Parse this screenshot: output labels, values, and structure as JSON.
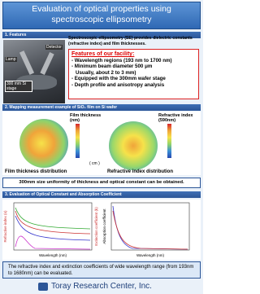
{
  "header": {
    "title": "Evaluation of optical properties using spectroscopic ellipsometry"
  },
  "features": {
    "heading": "1. Features",
    "intro": "Spectroscopic ellipsometry (SE) provides dielectric constants (refractive index) and film thicknesses.",
    "photo_labels": [
      "Detector",
      "Lamp",
      "300 mm Si stage"
    ],
    "facility_title": "Features of our facility:",
    "facility_items": [
      "- Wavelength regions (193 nm to 1700 nm)",
      "- Minimum beam diameter 500 μm",
      "  Usually, about 2 to 3 mm)",
      "- Equipped with the 300mm wafer stage",
      "- Depth profile and anisotropy analysis"
    ]
  },
  "mapping": {
    "heading": "2. Mapping measurement example of SiO₂ film on Si wafer",
    "maps": [
      {
        "label": "Film thickness (nm)",
        "caption": "Film thickness distribution"
      },
      {
        "label": "Refractive index (590nm)",
        "caption": "Refractive index distribution"
      }
    ],
    "unit": "( cm )",
    "conclusion": "300mm size uniformity of thickness and optical constant can be obtained."
  },
  "evaluation": {
    "heading": "3. Evaluation of Optical Constant and Absorption Coefficient",
    "charts": [
      {
        "y_left": "Refractive index (n)",
        "y_right": "Extinction coefficient (k)",
        "x": "Wavelength (nm)"
      },
      {
        "y_left": "Absorption coefficient",
        "x": "Wavelength (nm)"
      }
    ],
    "conclusion": "The refractive index and extinction coefficients of wide wavelength range (from 193nm to 1680nm) can be evaluated."
  },
  "footer": {
    "company": "Toray Research Center, Inc."
  }
}
